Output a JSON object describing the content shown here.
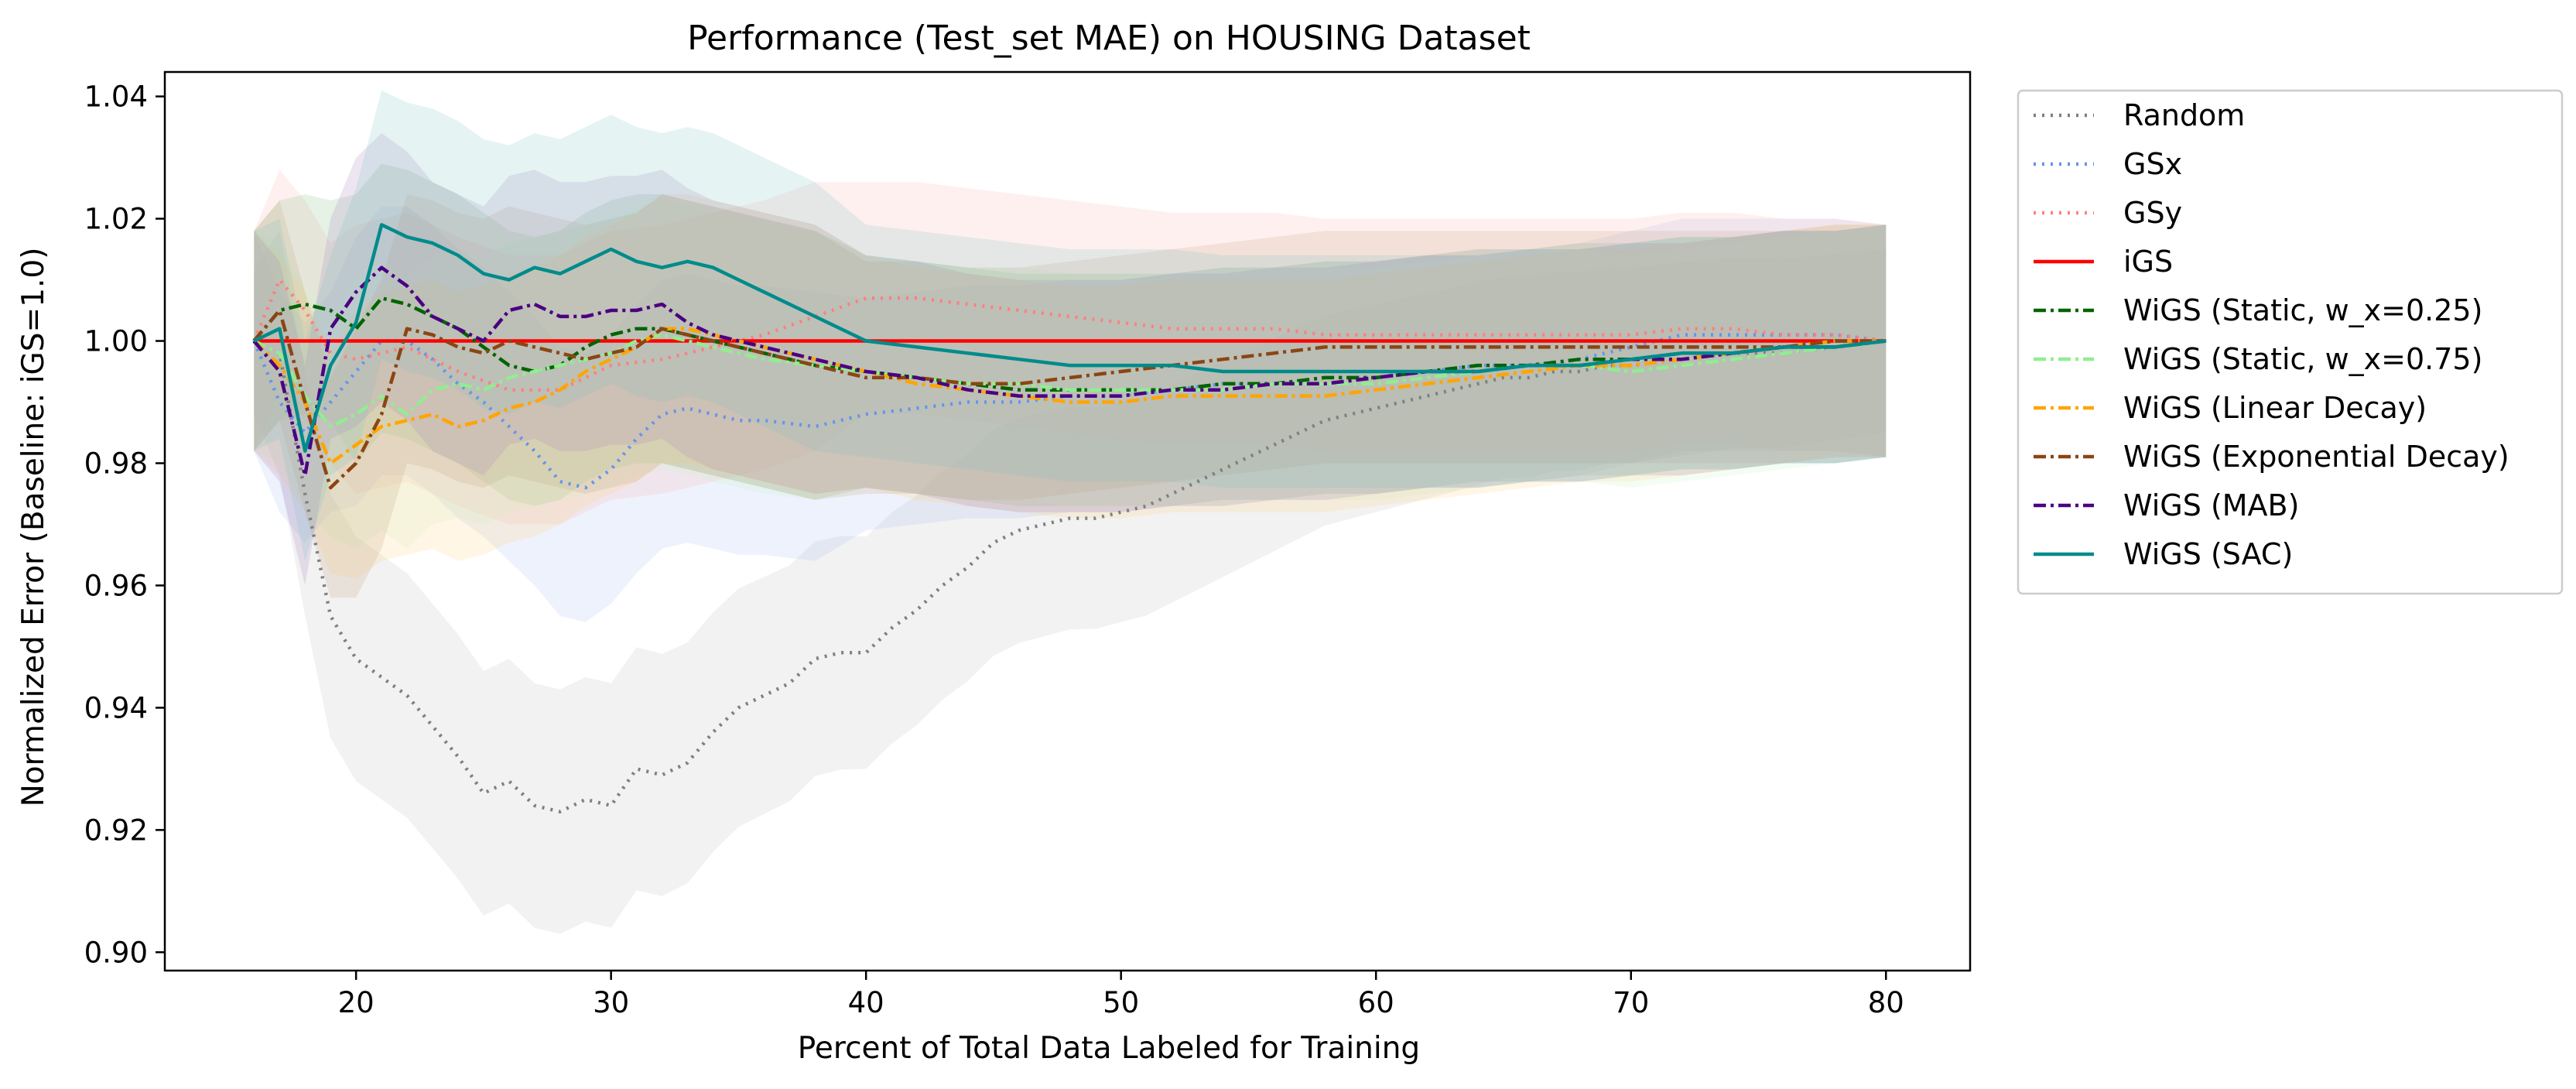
{
  "chart_data": {
    "type": "line",
    "title": "Performance (Test_set MAE) on HOUSING Dataset",
    "xlabel": "Percent of Total Data Labeled for Training",
    "ylabel": "Normalized Error (Baseline: iGS=1.0)",
    "xlim": [
      12.5,
      83.3
    ],
    "ylim": [
      0.897,
      1.044
    ],
    "xticks": [
      20,
      30,
      40,
      50,
      60,
      70,
      80
    ],
    "yticks": [
      0.9,
      0.92,
      0.94,
      0.96,
      0.98,
      1.0,
      1.02,
      1.04
    ],
    "xtick_labels": [
      "20",
      "30",
      "40",
      "50",
      "60",
      "70",
      "80"
    ],
    "ytick_labels": [
      "0.90",
      "0.92",
      "0.94",
      "0.96",
      "0.98",
      "1.00",
      "1.02",
      "1.04"
    ],
    "grid": false,
    "legend_placement": "outside-right",
    "series": [
      {
        "name": "Random",
        "color": "#808080",
        "style": "dotted",
        "band_color": "#bfbfbf",
        "band_width": [
          0,
          0.02,
          0.02,
          0.02,
          0.02,
          0.02,
          0.015,
          0.018
        ],
        "x": [
          16,
          17,
          18,
          19,
          20,
          21,
          22,
          23,
          24,
          25,
          26,
          27,
          28,
          29,
          30,
          31,
          32,
          33,
          34,
          35,
          36,
          37,
          38,
          39,
          40,
          41,
          42,
          43,
          44,
          45,
          46,
          47,
          48,
          49,
          50,
          51,
          52,
          53,
          54,
          55,
          56,
          57,
          58,
          59,
          60,
          61,
          62,
          63,
          64,
          65,
          66,
          67,
          68,
          69,
          70,
          72,
          74,
          76,
          78,
          80
        ],
        "y": [
          1.0,
          0.998,
          0.975,
          0.955,
          0.948,
          0.945,
          0.942,
          0.937,
          0.932,
          0.926,
          0.928,
          0.924,
          0.923,
          0.925,
          0.924,
          0.93,
          0.929,
          0.931,
          0.936,
          0.94,
          0.942,
          0.944,
          0.948,
          0.949,
          0.949,
          0.953,
          0.956,
          0.96,
          0.963,
          0.967,
          0.969,
          0.97,
          0.971,
          0.971,
          0.972,
          0.973,
          0.975,
          0.977,
          0.979,
          0.981,
          0.983,
          0.985,
          0.987,
          0.988,
          0.989,
          0.99,
          0.991,
          0.992,
          0.993,
          0.994,
          0.994,
          0.995,
          0.995,
          0.996,
          0.996,
          0.997,
          0.998,
          0.998,
          0.999,
          1.0
        ]
      },
      {
        "name": "GSx",
        "color": "#6495ed",
        "style": "dotted",
        "band_color": "#a8c0f0",
        "x": [
          16,
          17,
          18,
          19,
          20,
          21,
          22,
          23,
          24,
          25,
          26,
          27,
          28,
          29,
          30,
          31,
          32,
          33,
          34,
          35,
          36,
          38,
          40,
          42,
          44,
          46,
          48,
          50,
          52,
          54,
          56,
          58,
          60,
          62,
          64,
          66,
          68,
          70,
          72,
          74,
          76,
          78,
          80
        ],
        "y": [
          1.0,
          0.99,
          0.985,
          0.99,
          0.995,
          1.0,
          1.0,
          0.997,
          0.993,
          0.99,
          0.986,
          0.982,
          0.977,
          0.976,
          0.979,
          0.984,
          0.988,
          0.989,
          0.988,
          0.987,
          0.987,
          0.986,
          0.988,
          0.989,
          0.99,
          0.99,
          0.991,
          0.991,
          0.992,
          0.993,
          0.993,
          0.994,
          0.994,
          0.995,
          0.996,
          0.996,
          0.997,
          0.999,
          1.001,
          1.001,
          1.001,
          1.001,
          1.0
        ]
      },
      {
        "name": "GSy",
        "color": "#ff7f7f",
        "style": "dotted",
        "band_color": "#ffb3b3",
        "x": [
          16,
          17,
          18,
          19,
          20,
          21,
          22,
          24,
          26,
          28,
          30,
          32,
          34,
          36,
          38,
          40,
          42,
          44,
          46,
          48,
          50,
          52,
          54,
          56,
          58,
          60,
          62,
          64,
          66,
          68,
          70,
          72,
          74,
          76,
          78,
          80
        ],
        "y": [
          1.0,
          1.01,
          1.005,
          0.998,
          0.997,
          0.998,
          0.999,
          0.995,
          0.992,
          0.992,
          0.996,
          0.997,
          0.999,
          1.001,
          1.004,
          1.007,
          1.007,
          1.006,
          1.005,
          1.004,
          1.003,
          1.002,
          1.002,
          1.002,
          1.001,
          1.001,
          1.001,
          1.001,
          1.001,
          1.001,
          1.001,
          1.002,
          1.002,
          1.001,
          1.001,
          1.0
        ]
      },
      {
        "name": "iGS",
        "color": "#ff0000",
        "style": "solid",
        "x": [
          16,
          80
        ],
        "y": [
          1.0,
          1.0
        ]
      },
      {
        "name": "WiGS (Static, w_x=0.25)",
        "color": "#006400",
        "style": "dashdot",
        "band_color": "#7fbf7f",
        "x": [
          16,
          17,
          18,
          19,
          20,
          21,
          22,
          23,
          24,
          25,
          26,
          27,
          28,
          29,
          30,
          31,
          32,
          33,
          34,
          35,
          36,
          38,
          40,
          42,
          44,
          46,
          48,
          50,
          52,
          54,
          56,
          58,
          60,
          62,
          64,
          66,
          68,
          70,
          72,
          74,
          76,
          78,
          80
        ],
        "y": [
          1.0,
          1.005,
          1.006,
          1.005,
          1.002,
          1.007,
          1.006,
          1.004,
          1.002,
          0.999,
          0.996,
          0.995,
          0.996,
          0.999,
          1.001,
          1.002,
          1.002,
          1.001,
          1.0,
          0.999,
          0.998,
          0.996,
          0.995,
          0.994,
          0.993,
          0.992,
          0.992,
          0.992,
          0.992,
          0.993,
          0.993,
          0.994,
          0.994,
          0.995,
          0.996,
          0.996,
          0.997,
          0.997,
          0.998,
          0.998,
          0.999,
          0.999,
          1.0
        ]
      },
      {
        "name": "WiGS (Static, w_x=0.75)",
        "color": "#90ee90",
        "style": "dashdot",
        "band_color": "#c8f5c8",
        "x": [
          16,
          17,
          18,
          19,
          20,
          21,
          22,
          23,
          24,
          25,
          26,
          27,
          28,
          29,
          30,
          31,
          32,
          33,
          34,
          35,
          36,
          38,
          40,
          42,
          44,
          46,
          48,
          50,
          52,
          54,
          56,
          58,
          60,
          62,
          64,
          66,
          68,
          70,
          72,
          74,
          76,
          78,
          80
        ],
        "y": [
          1.0,
          0.998,
          0.991,
          0.986,
          0.988,
          0.991,
          0.988,
          0.992,
          0.993,
          0.992,
          0.994,
          0.995,
          0.996,
          0.997,
          0.998,
          1.0,
          1.001,
          1.0,
          0.999,
          0.998,
          0.997,
          0.996,
          0.995,
          0.994,
          0.993,
          0.993,
          0.992,
          0.992,
          0.992,
          0.992,
          0.993,
          0.993,
          0.993,
          0.994,
          0.995,
          0.996,
          0.996,
          0.995,
          0.996,
          0.997,
          0.998,
          0.999,
          1.0
        ]
      },
      {
        "name": "WiGS (Linear Decay)",
        "color": "#ffa500",
        "style": "dashdot",
        "band_color": "#ffd27f",
        "x": [
          16,
          17,
          18,
          19,
          20,
          21,
          22,
          23,
          24,
          25,
          26,
          27,
          28,
          29,
          30,
          31,
          32,
          33,
          34,
          35,
          36,
          38,
          40,
          42,
          44,
          46,
          48,
          50,
          52,
          54,
          56,
          58,
          60,
          62,
          64,
          66,
          68,
          70,
          72,
          74,
          76,
          78,
          80
        ],
        "y": [
          1.0,
          0.996,
          0.99,
          0.98,
          0.983,
          0.986,
          0.987,
          0.988,
          0.986,
          0.987,
          0.989,
          0.99,
          0.992,
          0.995,
          0.997,
          0.999,
          1.002,
          1.002,
          1.001,
          1.0,
          0.999,
          0.997,
          0.995,
          0.993,
          0.992,
          0.991,
          0.99,
          0.99,
          0.991,
          0.991,
          0.991,
          0.991,
          0.992,
          0.993,
          0.994,
          0.995,
          0.996,
          0.996,
          0.997,
          0.998,
          0.999,
          1.0,
          1.0
        ]
      },
      {
        "name": "WiGS (Exponential Decay)",
        "color": "#8b4513",
        "style": "dashdot",
        "band_color": "#c4a07f",
        "x": [
          16,
          17,
          18,
          19,
          20,
          21,
          22,
          23,
          24,
          25,
          26,
          27,
          28,
          29,
          30,
          31,
          32,
          33,
          34,
          35,
          36,
          38,
          40,
          42,
          44,
          46,
          48,
          50,
          52,
          54,
          56,
          58,
          60,
          62,
          64,
          66,
          68,
          70,
          72,
          74,
          76,
          78,
          80
        ],
        "y": [
          1.0,
          1.005,
          0.99,
          0.976,
          0.98,
          0.988,
          1.002,
          1.001,
          0.999,
          0.998,
          1.0,
          0.999,
          0.998,
          0.997,
          0.998,
          0.999,
          1.002,
          1.001,
          1.0,
          0.999,
          0.998,
          0.996,
          0.994,
          0.994,
          0.993,
          0.993,
          0.994,
          0.995,
          0.996,
          0.997,
          0.998,
          0.999,
          0.999,
          0.999,
          0.999,
          0.999,
          0.999,
          0.999,
          0.999,
          0.999,
          0.999,
          1.0,
          1.0
        ]
      },
      {
        "name": "WiGS (MAB)",
        "color": "#4b0082",
        "style": "dashdot",
        "band_color": "#a57fc0",
        "x": [
          16,
          17,
          18,
          19,
          20,
          21,
          22,
          23,
          24,
          25,
          26,
          27,
          28,
          29,
          30,
          31,
          32,
          33,
          34,
          35,
          36,
          38,
          40,
          42,
          44,
          46,
          48,
          50,
          52,
          54,
          56,
          58,
          60,
          62,
          64,
          66,
          68,
          70,
          72,
          74,
          76,
          78,
          80
        ],
        "y": [
          1.0,
          0.995,
          0.978,
          1.002,
          1.008,
          1.012,
          1.009,
          1.004,
          1.002,
          1.0,
          1.005,
          1.006,
          1.004,
          1.004,
          1.005,
          1.005,
          1.006,
          1.003,
          1.001,
          1.0,
          0.999,
          0.997,
          0.995,
          0.994,
          0.992,
          0.991,
          0.991,
          0.991,
          0.992,
          0.992,
          0.993,
          0.993,
          0.994,
          0.995,
          0.995,
          0.996,
          0.996,
          0.997,
          0.997,
          0.998,
          0.999,
          0.999,
          1.0
        ]
      },
      {
        "name": "WiGS (SAC)",
        "color": "#008b8b",
        "style": "solid",
        "band_color": "#7fc5c5",
        "x": [
          16,
          17,
          18,
          19,
          20,
          21,
          22,
          23,
          24,
          25,
          26,
          27,
          28,
          29,
          30,
          31,
          32,
          33,
          34,
          35,
          36,
          38,
          40,
          42,
          44,
          46,
          48,
          50,
          52,
          54,
          56,
          58,
          60,
          62,
          64,
          66,
          68,
          70,
          72,
          74,
          76,
          78,
          80
        ],
        "y": [
          1.0,
          1.002,
          0.982,
          0.996,
          1.003,
          1.019,
          1.017,
          1.016,
          1.014,
          1.011,
          1.01,
          1.012,
          1.011,
          1.013,
          1.015,
          1.013,
          1.012,
          1.013,
          1.012,
          1.01,
          1.008,
          1.004,
          1.0,
          0.999,
          0.998,
          0.997,
          0.996,
          0.996,
          0.996,
          0.995,
          0.995,
          0.995,
          0.995,
          0.995,
          0.995,
          0.996,
          0.996,
          0.997,
          0.998,
          0.998,
          0.999,
          0.999,
          1.0
        ]
      }
    ]
  }
}
